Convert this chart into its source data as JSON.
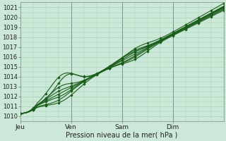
{
  "xlabel": "Pression niveau de la mer( hPa )",
  "ylim": [
    1009.7,
    1021.5
  ],
  "xlim": [
    0,
    96
  ],
  "yticks": [
    1010,
    1011,
    1012,
    1013,
    1014,
    1015,
    1016,
    1017,
    1018,
    1019,
    1020,
    1021
  ],
  "xtick_positions": [
    0,
    24,
    48,
    72
  ],
  "xtick_labels": [
    "Jeu",
    "Ven",
    "Sam",
    "Dim"
  ],
  "vline_positions": [
    24,
    48,
    72
  ],
  "bg_color": "#cce8d8",
  "grid_color": "#99ccaa",
  "line_color": "#1a5c1a",
  "marker": "D",
  "line_width": 0.9,
  "marker_size": 2.2
}
